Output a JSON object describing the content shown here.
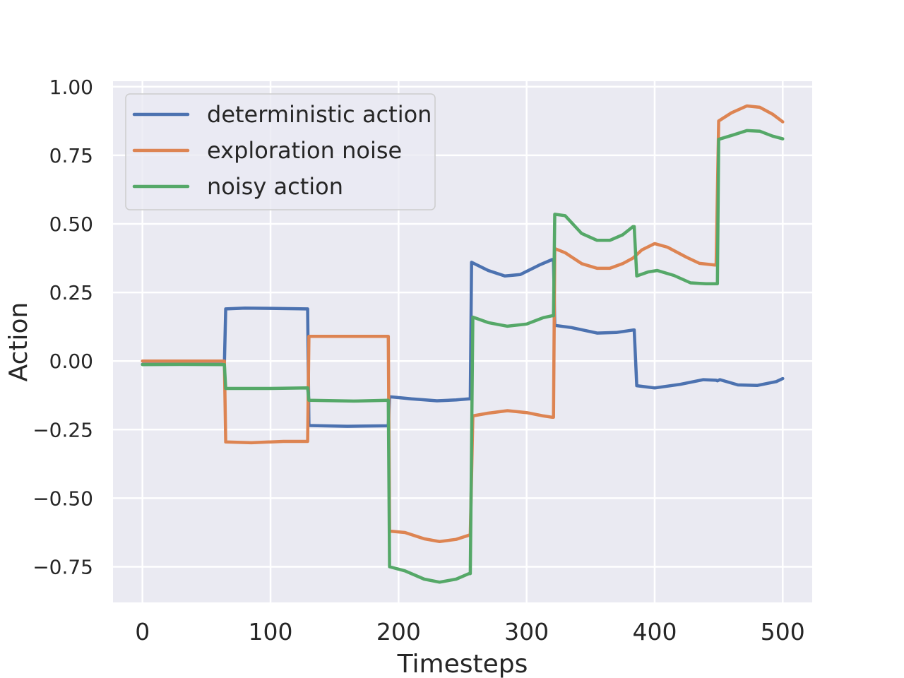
{
  "chart_data": {
    "type": "line",
    "title": "",
    "xlabel": "Timesteps",
    "ylabel": "Action",
    "xlim": [
      -23,
      523
    ],
    "ylim": [
      -0.88,
      1.02
    ],
    "xticks": [
      0,
      100,
      200,
      300,
      400,
      500
    ],
    "xtick_labels": [
      "0",
      "100",
      "200",
      "300",
      "400",
      "500"
    ],
    "yticks": [
      -0.75,
      -0.5,
      -0.25,
      0.0,
      0.25,
      0.5,
      0.75,
      1.0
    ],
    "ytick_labels": [
      "−0.75",
      "−0.50",
      "−0.25",
      "0.00",
      "0.25",
      "0.50",
      "0.75",
      "1.00"
    ],
    "grid": true,
    "legend_position": "top-left",
    "series": [
      {
        "name": "deterministic action",
        "color": "#4c72b0",
        "points": [
          [
            0,
            -0.012
          ],
          [
            63,
            -0.012
          ],
          [
            64,
            -0.012
          ],
          [
            65,
            0.19
          ],
          [
            80,
            0.193
          ],
          [
            100,
            0.192
          ],
          [
            128,
            0.19
          ],
          [
            129,
            0.19
          ],
          [
            130,
            -0.235
          ],
          [
            160,
            -0.238
          ],
          [
            192,
            -0.236
          ],
          [
            193,
            -0.13
          ],
          [
            210,
            -0.138
          ],
          [
            230,
            -0.145
          ],
          [
            245,
            -0.142
          ],
          [
            255,
            -0.138
          ],
          [
            256,
            -0.138
          ],
          [
            257,
            0.36
          ],
          [
            270,
            0.33
          ],
          [
            283,
            0.31
          ],
          [
            295,
            0.315
          ],
          [
            310,
            0.35
          ],
          [
            320,
            0.37
          ],
          [
            321,
            0.37
          ],
          [
            322,
            0.13
          ],
          [
            335,
            0.122
          ],
          [
            355,
            0.102
          ],
          [
            370,
            0.104
          ],
          [
            383,
            0.113
          ],
          [
            384,
            0.113
          ],
          [
            386,
            -0.09
          ],
          [
            400,
            -0.098
          ],
          [
            420,
            -0.085
          ],
          [
            438,
            -0.068
          ],
          [
            448,
            -0.07
          ],
          [
            449,
            -0.072
          ],
          [
            451,
            -0.068
          ],
          [
            465,
            -0.087
          ],
          [
            480,
            -0.089
          ],
          [
            495,
            -0.075
          ],
          [
            500,
            -0.064
          ]
        ]
      },
      {
        "name": "exploration noise",
        "color": "#dd8452",
        "points": [
          [
            0,
            0.0
          ],
          [
            63,
            0.0
          ],
          [
            64,
            0.0
          ],
          [
            65,
            -0.295
          ],
          [
            85,
            -0.298
          ],
          [
            110,
            -0.293
          ],
          [
            128,
            -0.293
          ],
          [
            129,
            -0.293
          ],
          [
            130,
            0.09
          ],
          [
            160,
            0.09
          ],
          [
            192,
            0.09
          ],
          [
            193,
            -0.62
          ],
          [
            205,
            -0.625
          ],
          [
            220,
            -0.648
          ],
          [
            232,
            -0.658
          ],
          [
            245,
            -0.65
          ],
          [
            255,
            -0.635
          ],
          [
            256,
            -0.635
          ],
          [
            258,
            -0.2
          ],
          [
            270,
            -0.19
          ],
          [
            285,
            -0.181
          ],
          [
            300,
            -0.188
          ],
          [
            313,
            -0.2
          ],
          [
            320,
            -0.205
          ],
          [
            321,
            -0.205
          ],
          [
            322,
            0.41
          ],
          [
            330,
            0.395
          ],
          [
            343,
            0.355
          ],
          [
            355,
            0.338
          ],
          [
            365,
            0.338
          ],
          [
            375,
            0.355
          ],
          [
            383,
            0.375
          ],
          [
            390,
            0.405
          ],
          [
            400,
            0.428
          ],
          [
            410,
            0.415
          ],
          [
            425,
            0.378
          ],
          [
            435,
            0.356
          ],
          [
            447,
            0.35
          ],
          [
            448,
            0.35
          ],
          [
            450,
            0.875
          ],
          [
            460,
            0.905
          ],
          [
            472,
            0.93
          ],
          [
            482,
            0.925
          ],
          [
            492,
            0.9
          ],
          [
            500,
            0.872
          ]
        ]
      },
      {
        "name": "noisy action",
        "color": "#55a868",
        "points": [
          [
            0,
            -0.013
          ],
          [
            30,
            -0.012
          ],
          [
            63,
            -0.013
          ],
          [
            64,
            -0.013
          ],
          [
            65,
            -0.1
          ],
          [
            100,
            -0.1
          ],
          [
            128,
            -0.098
          ],
          [
            129,
            -0.098
          ],
          [
            130,
            -0.143
          ],
          [
            165,
            -0.146
          ],
          [
            192,
            -0.143
          ],
          [
            193,
            -0.75
          ],
          [
            205,
            -0.765
          ],
          [
            220,
            -0.795
          ],
          [
            232,
            -0.806
          ],
          [
            245,
            -0.795
          ],
          [
            255,
            -0.775
          ],
          [
            256,
            -0.775
          ],
          [
            258,
            0.16
          ],
          [
            270,
            0.14
          ],
          [
            285,
            0.127
          ],
          [
            300,
            0.135
          ],
          [
            313,
            0.158
          ],
          [
            320,
            0.165
          ],
          [
            321,
            0.165
          ],
          [
            322,
            0.535
          ],
          [
            330,
            0.53
          ],
          [
            343,
            0.465
          ],
          [
            355,
            0.44
          ],
          [
            365,
            0.44
          ],
          [
            375,
            0.46
          ],
          [
            383,
            0.49
          ],
          [
            384,
            0.49
          ],
          [
            386,
            0.31
          ],
          [
            395,
            0.325
          ],
          [
            402,
            0.33
          ],
          [
            415,
            0.312
          ],
          [
            428,
            0.285
          ],
          [
            440,
            0.282
          ],
          [
            448,
            0.282
          ],
          [
            449,
            0.282
          ],
          [
            450,
            0.808
          ],
          [
            462,
            0.825
          ],
          [
            472,
            0.84
          ],
          [
            482,
            0.838
          ],
          [
            492,
            0.82
          ],
          [
            500,
            0.81
          ]
        ]
      }
    ]
  }
}
